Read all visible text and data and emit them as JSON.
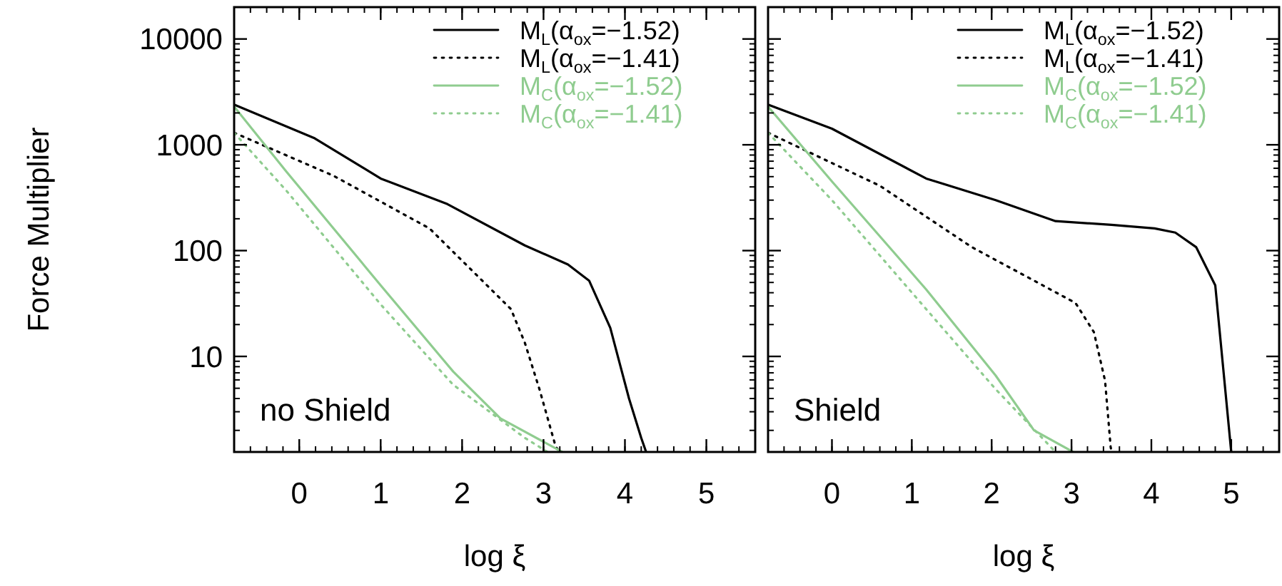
{
  "chart_data": [
    {
      "type": "line",
      "xlabel": "log ξ",
      "ylabel": "Force Multiplier",
      "log": "y",
      "xlim": [
        -0.8,
        5.6
      ],
      "ylim": [
        1.25,
        20000
      ],
      "xticks": [
        0,
        1,
        2,
        3,
        4,
        5
      ],
      "yticks": [
        10,
        100,
        1000,
        10000
      ],
      "legend": "top right",
      "annotations": [
        "no Shield"
      ],
      "series": [
        {
          "name": "M$_{L}$(α$_{ox}$=−1.52)",
          "color": "#000000",
          "line_style": "solid",
          "x": [
            -0.8,
            0.19,
            1.0,
            1.82,
            2.77,
            3.3,
            3.56,
            3.82,
            4.05,
            4.2,
            4.26
          ],
          "values": [
            2400,
            1150,
            480,
            275,
            112,
            74,
            52,
            18.6,
            4,
            1.7,
            1.25
          ]
        },
        {
          "name": "M$_{L}$(α$_{ox}$=−1.41)",
          "color": "#000000",
          "line_style": "dotted",
          "x": [
            -0.8,
            0.42,
            1.6,
            2.6,
            2.77,
            2.95,
            3.15,
            3.2
          ],
          "values": [
            1300,
            510,
            162,
            28,
            13.5,
            4.9,
            1.4,
            1.25
          ]
        },
        {
          "name": "M$_{C}$(α$_{ox}$=−1.52)",
          "color": "#8fcc8f",
          "line_style": "solid",
          "x": [
            -0.8,
            -0.16,
            1.0,
            1.89,
            2.47,
            3.23
          ],
          "values": [
            2300,
            560,
            47,
            7.2,
            2.6,
            1.25
          ]
        },
        {
          "name": "M$_{C}$(α$_{ox}$=−1.41)",
          "color": "#8fcc8f",
          "line_style": "dotted",
          "x": [
            -0.8,
            -0.16,
            1.0,
            1.89,
            2.77,
            3.05
          ],
          "values": [
            1300,
            370,
            31,
            5.4,
            1.7,
            1.25
          ]
        }
      ]
    },
    {
      "type": "line",
      "xlabel": "log ξ",
      "log": "y",
      "xlim": [
        -0.8,
        5.6
      ],
      "ylim": [
        1.25,
        20000
      ],
      "xticks": [
        0,
        1,
        2,
        3,
        4,
        5
      ],
      "yticks": [
        10,
        100,
        1000,
        10000
      ],
      "tick_labels": "x",
      "legend": "top right",
      "annotations": [
        "Shield"
      ],
      "series": [
        {
          "name": "M$_{L}$(α$_{ox}$=−1.52)",
          "color": "#000000",
          "line_style": "solid",
          "x": [
            -0.8,
            0,
            1.18,
            2.05,
            2.8,
            3.5,
            4.04,
            4.3,
            4.56,
            4.8,
            5.0
          ],
          "values": [
            2400,
            1420,
            480,
            300,
            190,
            175,
            162,
            148,
            108,
            47,
            1.25
          ]
        },
        {
          "name": "M$_{L}$(α$_{ox}$=−1.41)",
          "color": "#000000",
          "line_style": "dotted",
          "x": [
            -0.8,
            0.6,
            1.75,
            3.05,
            3.28,
            3.42,
            3.49,
            3.5
          ],
          "values": [
            1300,
            410,
            108,
            32,
            17,
            5.9,
            1.4,
            1.25
          ]
        },
        {
          "name": "M$_{C}$(α$_{ox}$=−1.52)",
          "color": "#8fcc8f",
          "line_style": "solid",
          "x": [
            -0.8,
            0,
            1.18,
            2.05,
            2.53,
            3.02
          ],
          "values": [
            2300,
            450,
            43,
            6.6,
            2.0,
            1.25
          ]
        },
        {
          "name": "M$_{C}$(α$_{ox}$=−1.41)",
          "color": "#8fcc8f",
          "line_style": "dotted",
          "x": [
            -0.8,
            0,
            1.18,
            2.05,
            2.8
          ],
          "values": [
            1300,
            300,
            28,
            4.9,
            1.25
          ]
        }
      ]
    }
  ]
}
